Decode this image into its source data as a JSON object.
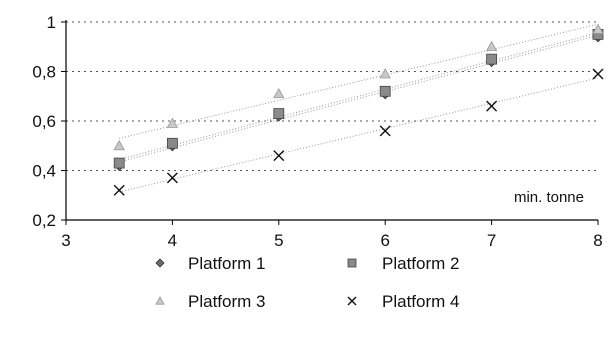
{
  "chart_data": {
    "type": "scatter",
    "title": "",
    "xlabel": "",
    "ylabel": "",
    "annotation": "min. tonne",
    "xlim": [
      3,
      8
    ],
    "ylim": [
      0.2,
      1
    ],
    "x_ticks": [
      "3",
      "4",
      "5",
      "6",
      "7",
      "8"
    ],
    "y_ticks": [
      "0,2",
      "0,4",
      "0,6",
      "0,8",
      "1"
    ],
    "grid": "horizontal dotted",
    "legend_position": "bottom",
    "x": [
      3.5,
      4,
      5,
      6,
      7,
      8
    ],
    "series": [
      {
        "name": "Platform 1",
        "marker": "diamond",
        "values": [
          0.42,
          0.5,
          0.62,
          0.71,
          0.84,
          0.94
        ]
      },
      {
        "name": "Platform 2",
        "marker": "square",
        "values": [
          0.43,
          0.51,
          0.63,
          0.72,
          0.85,
          0.95
        ]
      },
      {
        "name": "Platform 3",
        "marker": "triangle",
        "values": [
          0.5,
          0.59,
          0.71,
          0.79,
          0.9,
          0.97
        ]
      },
      {
        "name": "Platform 4",
        "marker": "cross",
        "values": [
          0.32,
          0.37,
          0.46,
          0.56,
          0.66,
          0.79
        ]
      }
    ],
    "trendlines": "dotted"
  }
}
